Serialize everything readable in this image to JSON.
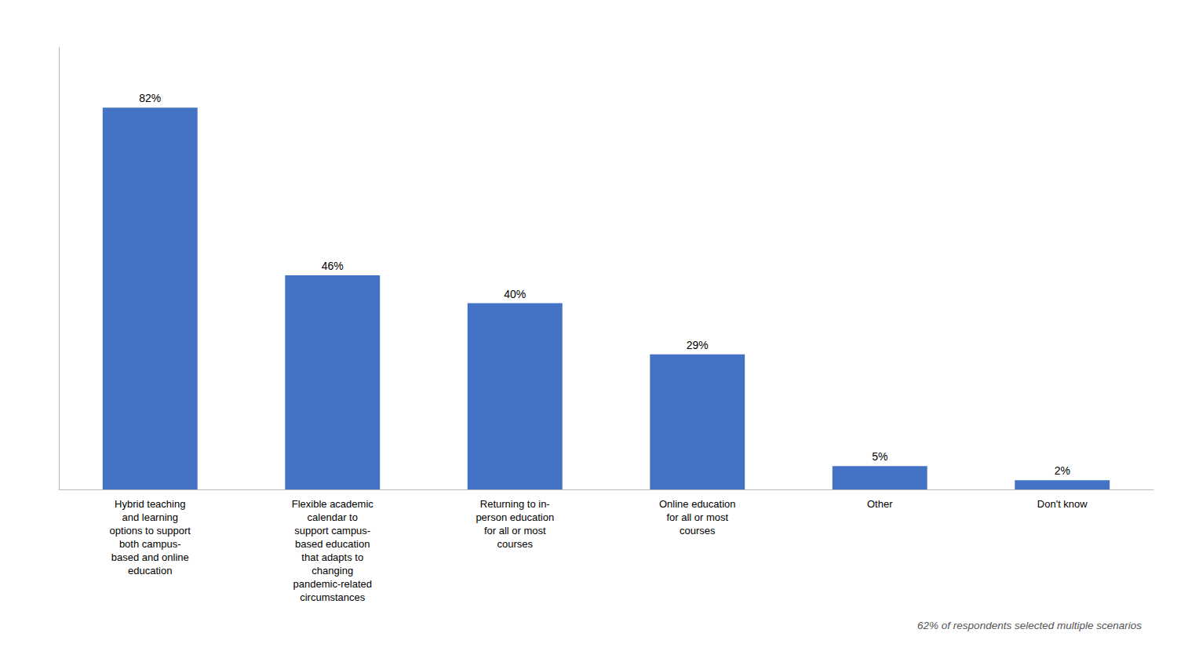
{
  "chart_data": {
    "type": "bar",
    "categories": [
      "Hybrid teaching\nand learning\noptions to support\nboth campus-\nbased and online\neducation",
      "Flexible academic\ncalendar to\nsupport campus-\nbased education\nthat adapts to\nchanging\npandemic-related\ncircumstances",
      "Returning to in-\nperson education\nfor all or most\ncourses",
      "Online education\nfor all or most\ncourses",
      "Other",
      "Don't know"
    ],
    "values": [
      82,
      46,
      40,
      29,
      5,
      2
    ],
    "value_labels": [
      "82%",
      "46%",
      "40%",
      "29%",
      "5%",
      "2%"
    ],
    "data_labels": true,
    "color": "#4472C4",
    "ylim": [
      0,
      95
    ],
    "tick_labels": "x",
    "grid": false,
    "annotation": "62% of respondents selected multiple scenarios"
  }
}
